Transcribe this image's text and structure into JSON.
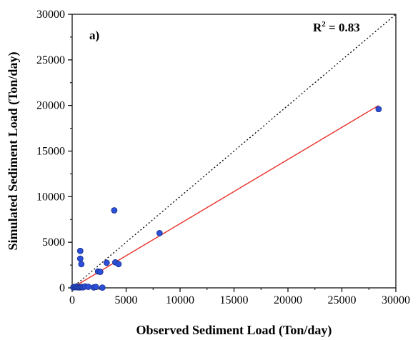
{
  "chart_data": {
    "type": "scatter",
    "panel_label": "a)",
    "annotation": {
      "r_label": "R",
      "r_sup": "2",
      "r_value": " = 0.83"
    },
    "xlabel": "Observed Sediment Load (Ton/day)",
    "ylabel": "Simulated Sediment Load (Ton/day)",
    "xlim": [
      0,
      30000
    ],
    "ylim": [
      0,
      30000
    ],
    "xticks": [
      "0",
      "5000",
      "10000",
      "15000",
      "20000",
      "25000",
      "30000"
    ],
    "yticks": [
      "0",
      "5000",
      "10000",
      "15000",
      "20000",
      "25000",
      "30000"
    ],
    "grid": false,
    "points": [
      {
        "x": 100,
        "y": 50
      },
      {
        "x": 200,
        "y": 100
      },
      {
        "x": 300,
        "y": 80
      },
      {
        "x": 400,
        "y": 150
      },
      {
        "x": 500,
        "y": 60
      },
      {
        "x": 600,
        "y": 100
      },
      {
        "x": 700,
        "y": 50
      },
      {
        "x": 800,
        "y": 80
      },
      {
        "x": 900,
        "y": 100
      },
      {
        "x": 1000,
        "y": 60
      },
      {
        "x": 1200,
        "y": 150
      },
      {
        "x": 1500,
        "y": 120
      },
      {
        "x": 2000,
        "y": 50
      },
      {
        "x": 2200,
        "y": 100
      },
      {
        "x": 2800,
        "y": 30
      },
      {
        "x": 750,
        "y": 4050
      },
      {
        "x": 750,
        "y": 3200
      },
      {
        "x": 850,
        "y": 2600
      },
      {
        "x": 2400,
        "y": 1800
      },
      {
        "x": 2600,
        "y": 1750
      },
      {
        "x": 3200,
        "y": 2750
      },
      {
        "x": 3900,
        "y": 8500
      },
      {
        "x": 4000,
        "y": 2800
      },
      {
        "x": 4300,
        "y": 2600
      },
      {
        "x": 8100,
        "y": 6000
      },
      {
        "x": 28400,
        "y": 19600
      }
    ],
    "one_to_one_line": {
      "x": [
        0,
        30000
      ],
      "y": [
        0,
        30000
      ],
      "style": "dotted",
      "color": "#000000"
    },
    "fit_line": {
      "x": [
        0,
        28400
      ],
      "y": [
        0,
        20000
      ],
      "color": "#e8302a"
    },
    "marker_color": "#2b4fd8",
    "marker_edge": "#1a2f8a"
  }
}
